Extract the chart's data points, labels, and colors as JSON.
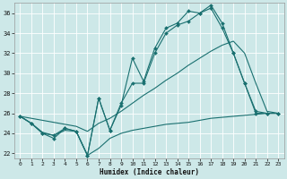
{
  "xlabel": "Humidex (Indice chaleur)",
  "bg_color": "#cde8e8",
  "line_color": "#1a7070",
  "grid_color": "#ffffff",
  "xlim": [
    -0.5,
    23.5
  ],
  "ylim": [
    21.5,
    37.0
  ],
  "yticks": [
    22,
    24,
    26,
    28,
    30,
    32,
    34,
    36
  ],
  "xticks": [
    0,
    1,
    2,
    3,
    4,
    5,
    6,
    7,
    8,
    9,
    10,
    11,
    12,
    13,
    14,
    15,
    16,
    17,
    18,
    19,
    20,
    21,
    22,
    23
  ],
  "line1_x": [
    0,
    1,
    2,
    3,
    4,
    5,
    6,
    7,
    8,
    9,
    10,
    11,
    12,
    13,
    14,
    15,
    16,
    17,
    18,
    19,
    20,
    21,
    22,
    23
  ],
  "line1_y": [
    25.7,
    25.0,
    24.0,
    23.8,
    24.5,
    24.2,
    21.8,
    27.5,
    24.3,
    26.8,
    31.5,
    29.2,
    32.5,
    34.5,
    35.0,
    36.2,
    36.0,
    36.8,
    35.0,
    32.0,
    29.0,
    26.2,
    26.0,
    26.0
  ],
  "line2_x": [
    0,
    1,
    2,
    3,
    4,
    5,
    6,
    7,
    8,
    9,
    10,
    11,
    12,
    13,
    14,
    15,
    16,
    17,
    18,
    19,
    20,
    21,
    22,
    23
  ],
  "line2_y": [
    25.7,
    25.0,
    24.0,
    23.5,
    24.5,
    24.2,
    21.8,
    27.5,
    24.3,
    27.0,
    29.0,
    29.0,
    32.0,
    34.0,
    34.8,
    35.2,
    36.0,
    36.5,
    34.5,
    32.0,
    29.0,
    26.0,
    26.0,
    26.0
  ],
  "line3_x": [
    0,
    1,
    2,
    3,
    4,
    5,
    6,
    7,
    8,
    9,
    10,
    11,
    12,
    13,
    14,
    15,
    16,
    17,
    18,
    19,
    20,
    21,
    22,
    23
  ],
  "line3_y": [
    25.7,
    25.5,
    25.3,
    25.1,
    24.9,
    24.7,
    24.2,
    25.0,
    25.5,
    26.2,
    27.0,
    27.8,
    28.5,
    29.3,
    30.0,
    30.8,
    31.5,
    32.2,
    32.8,
    33.2,
    32.0,
    29.0,
    26.2,
    26.0
  ],
  "line4_x": [
    0,
    1,
    2,
    3,
    4,
    5,
    6,
    7,
    8,
    9,
    10,
    11,
    12,
    13,
    14,
    15,
    16,
    17,
    18,
    19,
    20,
    21,
    22,
    23
  ],
  "line4_y": [
    25.7,
    25.0,
    24.1,
    23.8,
    24.3,
    24.2,
    21.8,
    22.5,
    23.5,
    24.0,
    24.3,
    24.5,
    24.7,
    24.9,
    25.0,
    25.1,
    25.3,
    25.5,
    25.6,
    25.7,
    25.8,
    25.9,
    26.0,
    26.0
  ],
  "xlabel_fontsize": 5.5,
  "tick_labelsize": 5.0,
  "linewidth": 0.8,
  "markersize": 2.0
}
